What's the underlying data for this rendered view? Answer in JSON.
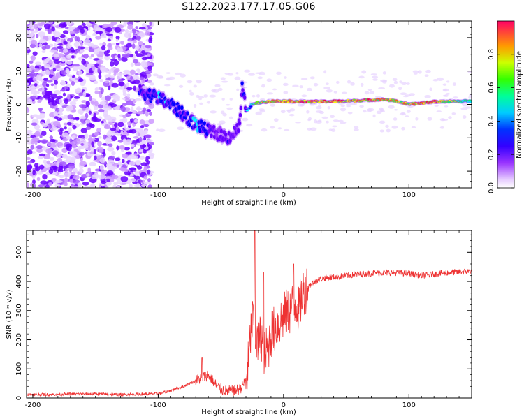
{
  "title": "S122.2023.177.17.05.G06",
  "chart_data": [
    {
      "type": "heatmap",
      "xlabel": "Height of straight line (km)",
      "ylabel": "Frequency (Hz)",
      "xlim": [
        -205,
        150
      ],
      "ylim": [
        -25,
        25
      ],
      "xticks": [
        -200,
        -100,
        0,
        100
      ],
      "yticks": [
        -20,
        -10,
        0,
        10,
        20
      ],
      "colorbar": {
        "label": "Normalized spectral amplitude",
        "ticks": [
          0.0,
          0.2,
          0.4,
          0.6,
          0.8
        ],
        "range": [
          0,
          1
        ],
        "colors": [
          "#ffffff",
          "#e6ccff",
          "#9933ff",
          "#6600ff",
          "#0000ff",
          "#00ffff",
          "#00ff66",
          "#66ff00",
          "#ffff00",
          "#ff6600",
          "#ff0033"
        ]
      },
      "ridge": {
        "x": [
          -115,
          -100,
          -90,
          -80,
          -70,
          -60,
          -50,
          -45,
          -40,
          -35,
          -33,
          -30,
          -25,
          -20,
          -10,
          0,
          20,
          50,
          80,
          90,
          100,
          120,
          150
        ],
        "frequency": [
          4,
          2,
          0,
          -3,
          -6,
          -8,
          -9,
          -10,
          -9,
          -6,
          5,
          -2,
          0,
          0.5,
          1,
          1,
          0.8,
          1,
          1.5,
          1,
          0,
          0.8,
          1
        ],
        "amplitude": [
          0.35,
          0.45,
          0.4,
          0.4,
          0.45,
          0.35,
          0.3,
          0.35,
          0.3,
          0.3,
          0.35,
          0.4,
          0.6,
          0.75,
          0.85,
          0.85,
          0.95,
          0.9,
          0.85,
          0.8,
          0.85,
          0.95,
          0.5
        ]
      }
    },
    {
      "type": "line",
      "xlabel": "Height of straight line (km)",
      "ylabel": "SNR (10 * v/v)",
      "xlim": [
        -205,
        150
      ],
      "ylim": [
        0,
        575
      ],
      "xticks": [
        -200,
        -100,
        0,
        100
      ],
      "yticks": [
        0,
        100,
        200,
        300,
        400,
        500
      ],
      "color": "#ee3333",
      "series": [
        {
          "x": [
            -205,
            -190,
            -170,
            -150,
            -130,
            -110,
            -100,
            -90,
            -80,
            -70,
            -65,
            -60,
            -55,
            -50,
            -45,
            -40,
            -35,
            -30,
            -28,
            -26,
            -24,
            -22,
            -20,
            -18,
            -15,
            -12,
            -10,
            -5,
            0,
            5,
            10,
            12,
            15,
            20,
            25,
            30,
            40,
            50,
            60,
            70,
            80,
            90,
            100,
            110,
            120,
            130,
            140,
            150
          ],
          "y": [
            12,
            12,
            14,
            14,
            12,
            14,
            15,
            25,
            40,
            60,
            70,
            80,
            50,
            30,
            25,
            25,
            30,
            60,
            120,
            230,
            280,
            200,
            180,
            220,
            150,
            180,
            220,
            250,
            280,
            300,
            330,
            300,
            360,
            385,
            400,
            410,
            415,
            420,
            425,
            428,
            430,
            430,
            428,
            420,
            425,
            430,
            433,
            435
          ]
        }
      ],
      "peaks": [
        {
          "x": -23,
          "y": 575
        },
        {
          "x": -16,
          "y": 430
        },
        {
          "x": 8,
          "y": 460
        },
        {
          "x": -65,
          "y": 140
        }
      ]
    }
  ]
}
